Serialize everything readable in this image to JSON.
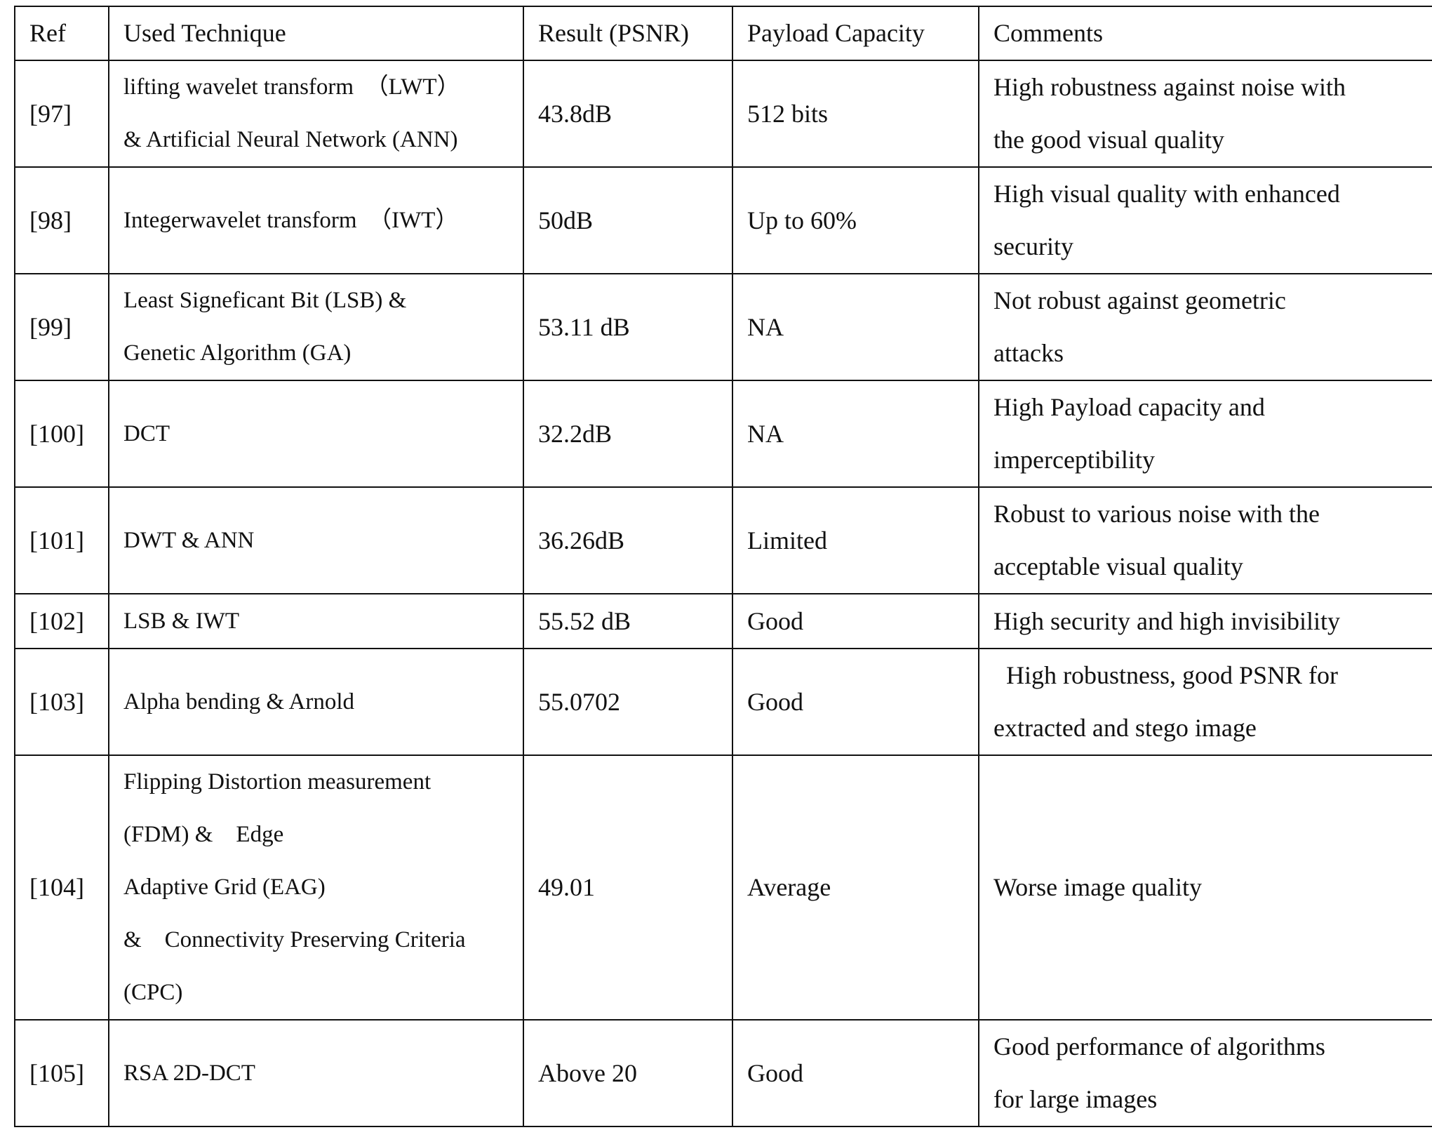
{
  "headers": [
    "Ref",
    "Used Technique",
    "Result (PSNR)",
    "Payload Capacity",
    "Comments"
  ],
  "rows": [
    {
      "ref": "[97]",
      "technique": [
        "lifting wavelet transform　（LWT）",
        "& Artificial Neural Network (ANN)"
      ],
      "psnr": "43.8dB",
      "payload": "512 bits",
      "comments": [
        "High robustness against noise with",
        "the good visual quality"
      ]
    },
    {
      "ref": "[98]",
      "technique": [
        "Integerwavelet transform　（IWT）"
      ],
      "psnr": "50dB",
      "payload": "Up to 60%",
      "comments": [
        "High visual quality with enhanced",
        "security"
      ]
    },
    {
      "ref": "[99]",
      "technique": [
        "Least Signeficant Bit (LSB) &",
        "Genetic Algorithm (GA)"
      ],
      "psnr": "53.11 dB",
      "payload": "NA",
      "comments": [
        "Not robust against geometric",
        "attacks"
      ]
    },
    {
      "ref": "[100]",
      "technique": [
        "DCT"
      ],
      "psnr": "32.2dB",
      "payload": "NA",
      "comments": [
        "High Payload capacity and",
        "imperceptibility"
      ]
    },
    {
      "ref": "[101]",
      "technique": [
        "DWT & ANN"
      ],
      "psnr": "36.26dB",
      "payload": "Limited",
      "comments": [
        "Robust to various noise with the",
        "acceptable visual quality"
      ]
    },
    {
      "ref": "[102]",
      "technique": [
        "LSB & IWT"
      ],
      "psnr": "55.52 dB",
      "payload": "Good",
      "comments": [
        "High security and high invisibility"
      ]
    },
    {
      "ref": "[103]",
      "technique": [
        "Alpha bending & Arnold"
      ],
      "psnr": "55.0702",
      "payload": "Good",
      "comments": [
        "  High robustness, good PSNR for",
        "extracted and stego image"
      ]
    },
    {
      "ref": "[104]",
      "technique": [
        "Flipping Distortion measurement",
        "(FDM) &　Edge",
        "Adaptive Grid (EAG)",
        "&　Connectivity Preserving Criteria",
        "(CPC)"
      ],
      "psnr": "49.01",
      "payload": "Average",
      "comments": [
        "Worse image quality"
      ]
    },
    {
      "ref": "[105]",
      "technique": [
        "RSA 2D-DCT"
      ],
      "psnr": "Above 20",
      "payload": "Good",
      "comments": [
        "Good performance of algorithms",
        "for large images"
      ]
    }
  ]
}
